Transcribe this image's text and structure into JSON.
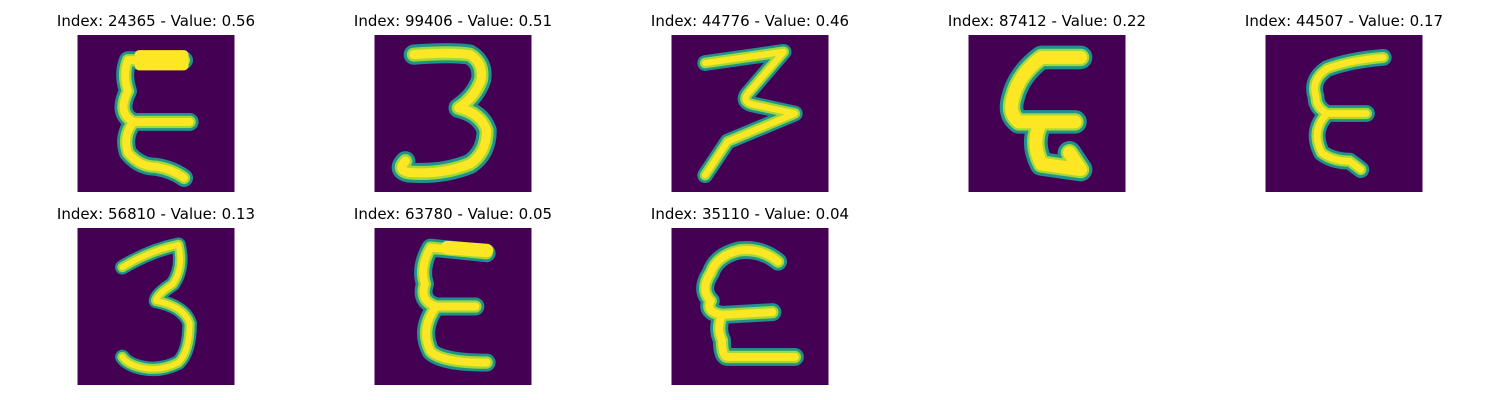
{
  "colors": {
    "background": "#440154",
    "stroke_core": "#fde725",
    "stroke_mid": "#a0da39",
    "stroke_edge": "#21918c"
  },
  "panels": [
    {
      "title": "Index: 24365 - Value: 0.56",
      "glyph": "E-like"
    },
    {
      "title": "Index: 99406 - Value: 0.51",
      "glyph": "3-like"
    },
    {
      "title": "Index: 44776 - Value: 0.46",
      "glyph": "3-like"
    },
    {
      "title": "Index: 87412 - Value: 0.22",
      "glyph": "E-like"
    },
    {
      "title": "Index: 44507 - Value: 0.17",
      "glyph": "E-like"
    },
    {
      "title": "Index: 56810 - Value: 0.13",
      "glyph": "3-like"
    },
    {
      "title": "Index: 63780 - Value: 0.05",
      "glyph": "E-like"
    },
    {
      "title": "Index: 35110 - Value: 0.04",
      "glyph": "E-like"
    }
  ]
}
